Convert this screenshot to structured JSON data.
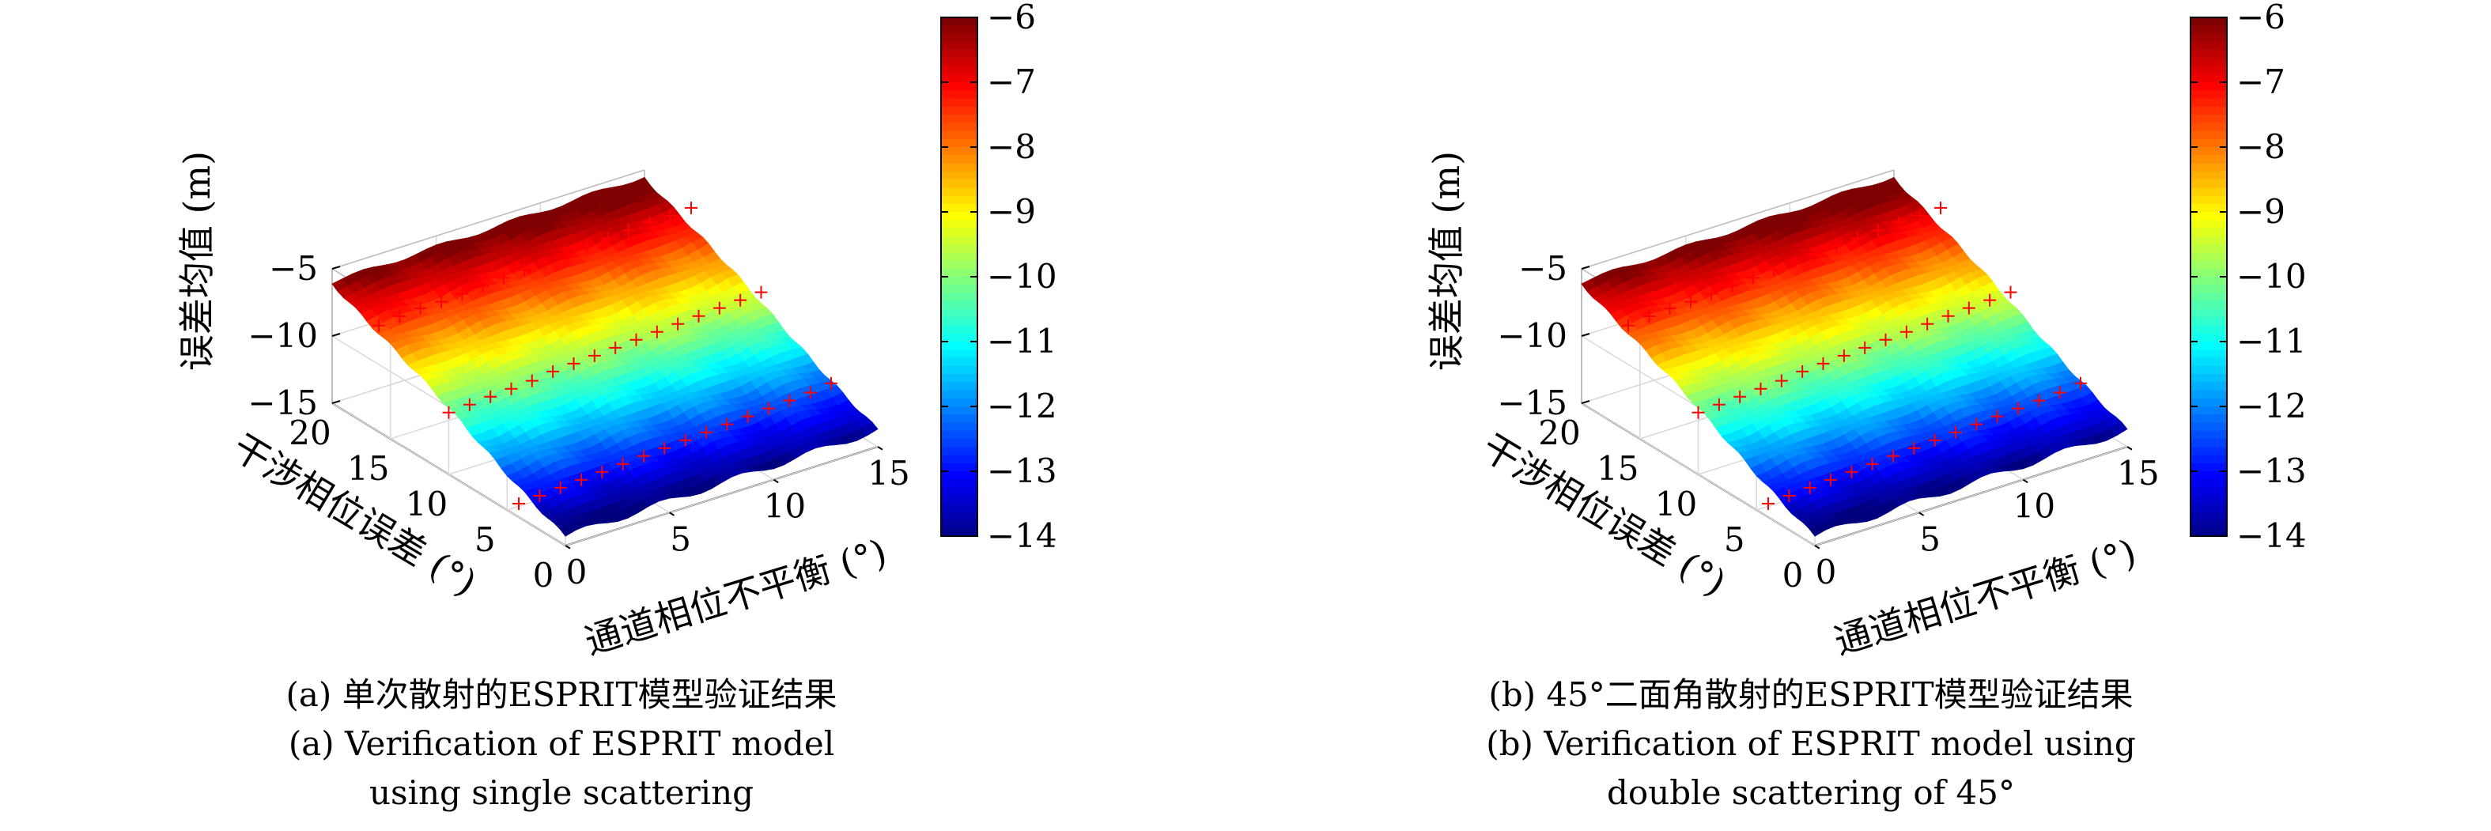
{
  "colormap": [
    "#00007f",
    "#0000ff",
    "#007fff",
    "#00ffff",
    "#7fff7f",
    "#ffff00",
    "#ff7f00",
    "#ff0000",
    "#7f0000"
  ],
  "marker_color": "#ff0000",
  "chart_data": [
    {
      "type": "surface",
      "panel": "a",
      "xlabel": "通道相位不平衡 (°)",
      "ylabel": "干涉相位误差 (°)",
      "zlabel": "误差均值 (m)",
      "x_ticks": [
        "0",
        "5",
        "10",
        "15"
      ],
      "y_ticks": [
        "0",
        "5",
        "10",
        "15",
        "20"
      ],
      "z_ticks": [
        "−5",
        "−10",
        "−15"
      ],
      "xlim": [
        0,
        15
      ],
      "ylim": [
        0,
        20
      ],
      "zlim": [
        -15,
        -5
      ],
      "colorbar": {
        "ticks": [
          "−6",
          "−7",
          "−8",
          "−9",
          "−10",
          "−11",
          "−12",
          "−13",
          "−14"
        ],
        "clim": [
          -14,
          -6
        ]
      },
      "surface": {
        "description_free_grid": true,
        "x": [
          0,
          15
        ],
        "y": [
          0,
          20
        ],
        "z_at_y0": -14.3,
        "z_at_y20": -6.0,
        "ripple": 0.25
      },
      "markers": [
        {
          "y": 4,
          "x": [
            0,
            1,
            2,
            3,
            4,
            5,
            6,
            7,
            8,
            9,
            10,
            11,
            12,
            13,
            14,
            15
          ],
          "z": [
            -14.6,
            -14.5,
            -14.4,
            -14.3,
            -14.2,
            -14.1,
            -14.0,
            -13.9,
            -13.8,
            -13.7,
            -13.6,
            -13.5,
            -13.4,
            -13.3,
            -13.2,
            -13.0
          ]
        },
        {
          "y": 10,
          "x": [
            0,
            1,
            2,
            3,
            4,
            5,
            6,
            7,
            8,
            9,
            10,
            11,
            12,
            13,
            14,
            15
          ],
          "z": [
            -11.0,
            -10.9,
            -10.8,
            -10.7,
            -10.6,
            -10.4,
            -10.3,
            -10.2,
            -10.1,
            -10.0,
            -9.9,
            -9.8,
            -9.7,
            -9.6,
            -9.5,
            -9.4
          ]
        },
        {
          "y": 16,
          "x": [
            0,
            1,
            2,
            3,
            4,
            5,
            6,
            7,
            8,
            9,
            10,
            11,
            12,
            13,
            14,
            15
          ],
          "z": [
            -7.7,
            -7.5,
            -7.4,
            -7.4,
            -7.3,
            -7.2,
            -7.1,
            -7.0,
            -6.9,
            -6.8,
            -6.7,
            -6.6,
            -6.5,
            -6.4,
            -6.4,
            -6.3
          ]
        }
      ]
    },
    {
      "type": "surface",
      "panel": "b",
      "xlabel": "通道相位不平衡 (°)",
      "ylabel": "干涉相位误差 (°)",
      "zlabel": "误差均值 (m)",
      "x_ticks": [
        "0",
        "5",
        "10",
        "15"
      ],
      "y_ticks": [
        "0",
        "5",
        "10",
        "15",
        "20"
      ],
      "z_ticks": [
        "−5",
        "−10",
        "−15"
      ],
      "xlim": [
        0,
        15
      ],
      "ylim": [
        0,
        20
      ],
      "zlim": [
        -15,
        -5
      ],
      "colorbar": {
        "ticks": [
          "−6",
          "−7",
          "−8",
          "−9",
          "−10",
          "−11",
          "−12",
          "−13",
          "−14"
        ],
        "clim": [
          -14,
          -6
        ]
      },
      "surface": {
        "description_free_grid": true,
        "x": [
          0,
          15
        ],
        "y": [
          0,
          20
        ],
        "z_at_y0": -14.3,
        "z_at_y20": -6.0,
        "ripple": 0.25
      },
      "markers": [
        {
          "y": 4,
          "x": [
            0,
            1,
            2,
            3,
            4,
            5,
            6,
            7,
            8,
            9,
            10,
            11,
            12,
            13,
            14,
            15
          ],
          "z": [
            -14.6,
            -14.5,
            -14.4,
            -14.3,
            -14.2,
            -14.1,
            -14.0,
            -13.9,
            -13.8,
            -13.7,
            -13.6,
            -13.5,
            -13.4,
            -13.3,
            -13.2,
            -13.0
          ]
        },
        {
          "y": 10,
          "x": [
            0,
            1,
            2,
            3,
            4,
            5,
            6,
            7,
            8,
            9,
            10,
            11,
            12,
            13,
            14,
            15
          ],
          "z": [
            -11.0,
            -10.9,
            -10.8,
            -10.7,
            -10.6,
            -10.4,
            -10.3,
            -10.2,
            -10.1,
            -10.0,
            -9.9,
            -9.8,
            -9.7,
            -9.6,
            -9.5,
            -9.4
          ]
        },
        {
          "y": 16,
          "x": [
            0,
            1,
            2,
            3,
            4,
            5,
            6,
            7,
            8,
            9,
            10,
            11,
            12,
            13,
            14,
            15
          ],
          "z": [
            -7.7,
            -7.5,
            -7.4,
            -7.4,
            -7.3,
            -7.2,
            -7.1,
            -7.0,
            -6.9,
            -6.8,
            -6.7,
            -6.6,
            -6.5,
            -6.4,
            -6.4,
            -6.3
          ]
        }
      ]
    }
  ],
  "captions": {
    "a": {
      "line1": "(a) 单次散射的ESPRIT模型验证结果",
      "line2": "(a) Verification of ESPRIT model",
      "line3": "using single scattering"
    },
    "b": {
      "line1": "(b) 45°二面角散射的ESPRIT模型验证结果",
      "line2": "(b) Verification of ESPRIT model using",
      "line3": "double scattering of 45°"
    }
  }
}
